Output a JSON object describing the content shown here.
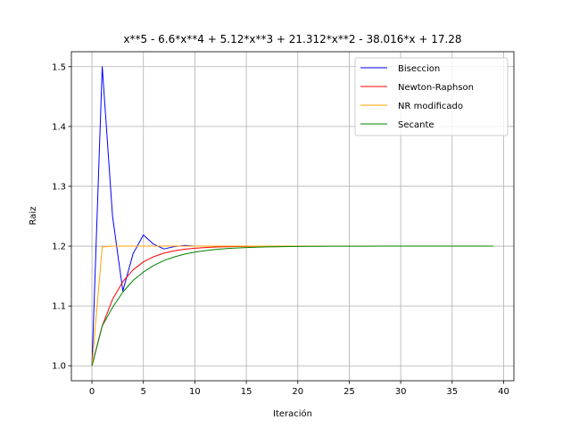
{
  "chart_data": {
    "type": "line",
    "title": "x**5 - 6.6*x**4 + 5.12*x**3 + 21.312*x**2 - 38.016*x + 17.28",
    "xlabel": "Iteración",
    "ylabel": "Raiz",
    "xlim": [
      -2,
      41
    ],
    "ylim": [
      0.975,
      1.525
    ],
    "xticks": [
      0,
      5,
      10,
      15,
      20,
      25,
      30,
      35,
      40
    ],
    "yticks": [
      1.0,
      1.1,
      1.2,
      1.3,
      1.4,
      1.5
    ],
    "xtick_labels": [
      "0",
      "5",
      "10",
      "15",
      "20",
      "25",
      "30",
      "35",
      "40"
    ],
    "ytick_labels": [
      "1.0",
      "1.1",
      "1.2",
      "1.3",
      "1.4",
      "1.5"
    ],
    "grid": true,
    "legend_position": "upper right",
    "series": [
      {
        "name": "Biseccion",
        "color": "#0000ff",
        "x": [
          0,
          1,
          2,
          3,
          4,
          5,
          6,
          7,
          8,
          9,
          10,
          11,
          12,
          13,
          14,
          15,
          16,
          17,
          18,
          19,
          20,
          21,
          22,
          23,
          24,
          25,
          26,
          27,
          28,
          29,
          30,
          31,
          32,
          33,
          34,
          35,
          36,
          37,
          38,
          39
        ],
        "y": [
          1.0,
          1.5,
          1.25,
          1.125,
          1.1875,
          1.21875,
          1.203125,
          1.1953125,
          1.19921875,
          1.201171875,
          1.2,
          1.2,
          1.2,
          1.2,
          1.2,
          1.2,
          1.2,
          1.2,
          1.2,
          1.2,
          1.2,
          1.2,
          1.2,
          1.2,
          1.2,
          1.2,
          1.2,
          1.2,
          1.2,
          1.2,
          1.2,
          1.2,
          1.2,
          1.2,
          1.2,
          1.2,
          1.2,
          1.2,
          1.2,
          1.2
        ]
      },
      {
        "name": "Newton-Raphson",
        "color": "#ff0000",
        "x": [
          0,
          1,
          2,
          3,
          4,
          5,
          6,
          7,
          8,
          9,
          10,
          11,
          12,
          13,
          14,
          15,
          16,
          17,
          18,
          19,
          20,
          21,
          22,
          23,
          24,
          25,
          26,
          27,
          28,
          29,
          30,
          31,
          32,
          33,
          34,
          35,
          36,
          37,
          38,
          39
        ],
        "y": [
          1.0,
          1.0667,
          1.1111,
          1.1407,
          1.1605,
          1.1737,
          1.1824,
          1.1883,
          1.1922,
          1.1948,
          1.1965,
          1.1977,
          1.1985,
          1.199,
          1.1993,
          1.1995,
          1.1997,
          1.1998,
          1.1999,
          1.1999,
          1.1999,
          1.2,
          1.2,
          1.2,
          1.2,
          1.2,
          1.2,
          1.2,
          1.2,
          1.2,
          1.2,
          1.2,
          1.2,
          1.2,
          1.2,
          1.2,
          1.2,
          1.2,
          1.2,
          1.2
        ]
      },
      {
        "name": "NR modificado",
        "color": "#ffa500",
        "x": [
          0,
          1,
          2,
          3,
          4,
          5,
          6,
          7,
          8,
          9,
          10,
          11,
          12,
          13,
          14,
          15,
          16,
          17,
          18,
          19,
          20,
          21,
          22,
          23,
          24,
          25,
          26,
          27,
          28,
          29,
          30,
          31,
          32,
          33,
          34,
          35,
          36,
          37,
          38,
          39
        ],
        "y": [
          1.0,
          1.1985,
          1.2,
          1.2,
          1.2,
          1.2,
          1.2,
          1.2,
          1.2,
          1.2,
          1.2,
          1.2,
          1.2,
          1.2,
          1.2,
          1.2,
          1.2,
          1.2,
          1.2,
          1.2,
          1.2,
          1.2,
          1.2,
          1.2,
          1.2,
          1.2,
          1.2,
          1.2,
          1.2,
          1.2,
          1.2,
          1.2,
          1.2,
          1.2,
          1.2,
          1.2,
          1.2,
          1.2,
          1.2,
          1.2
        ]
      },
      {
        "name": "Secante",
        "color": "#008000",
        "x": [
          0,
          1,
          2,
          3,
          4,
          5,
          6,
          7,
          8,
          9,
          10,
          11,
          12,
          13,
          14,
          15,
          16,
          17,
          18,
          19,
          20,
          21,
          22,
          23,
          24,
          25,
          26,
          27,
          28,
          29,
          30,
          31,
          32,
          33,
          34,
          35,
          36,
          37,
          38,
          39
        ],
        "y": [
          1.0,
          1.0667,
          1.0976,
          1.1231,
          1.1427,
          1.1567,
          1.1677,
          1.1759,
          1.182,
          1.1866,
          1.19,
          1.1925,
          1.1944,
          1.1958,
          1.1969,
          1.1977,
          1.1983,
          1.1987,
          1.199,
          1.1993,
          1.1995,
          1.1996,
          1.1997,
          1.1998,
          1.1998,
          1.1999,
          1.1999,
          1.1999,
          1.2,
          1.2,
          1.2,
          1.2,
          1.2,
          1.2,
          1.2,
          1.2,
          1.2,
          1.2,
          1.2,
          1.2
        ]
      }
    ]
  }
}
